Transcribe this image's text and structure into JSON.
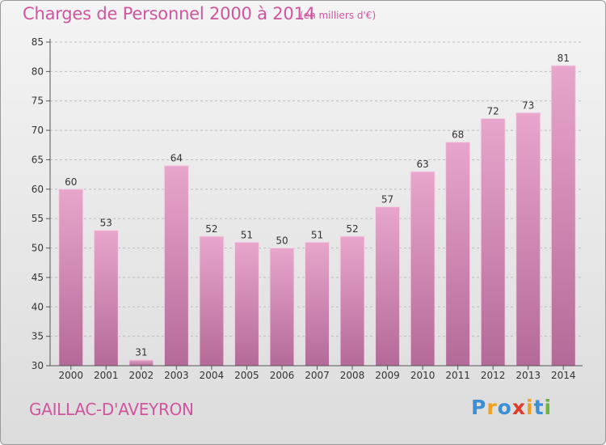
{
  "header": {
    "title": "Charges de Personnel 2000 à 2014",
    "subtitle": "(en milliers d'€)"
  },
  "footer": {
    "place": "GAILLAC-D'AVEYRON",
    "logo_letters": [
      {
        "char": "P",
        "color": "#3b8fd6"
      },
      {
        "char": "r",
        "color": "#f0a020"
      },
      {
        "char": "o",
        "color": "#3b8fd6"
      },
      {
        "char": "x",
        "color": "#e03a2a"
      },
      {
        "char": "i",
        "color": "#f0a020"
      },
      {
        "char": "t",
        "color": "#3b8fd6"
      },
      {
        "char": "i",
        "color": "#6db33f"
      }
    ]
  },
  "colors": {
    "bar_top": "#e8a6cc",
    "bar_bottom": "#b46a98",
    "text_accent": "#d0559f"
  },
  "chart_data": {
    "type": "bar",
    "categories": [
      "2000",
      "2001",
      "2002",
      "2003",
      "2004",
      "2005",
      "2006",
      "2007",
      "2008",
      "2009",
      "2010",
      "2011",
      "2012",
      "2013",
      "2014"
    ],
    "values": [
      60,
      53,
      31,
      64,
      52,
      51,
      50,
      51,
      52,
      57,
      63,
      68,
      72,
      73,
      81
    ],
    "ylim": [
      30,
      85
    ],
    "yticks": [
      30,
      35,
      40,
      45,
      50,
      55,
      60,
      65,
      70,
      75,
      80,
      85
    ],
    "grid": "horizontal-dashed",
    "data_labels": true
  }
}
